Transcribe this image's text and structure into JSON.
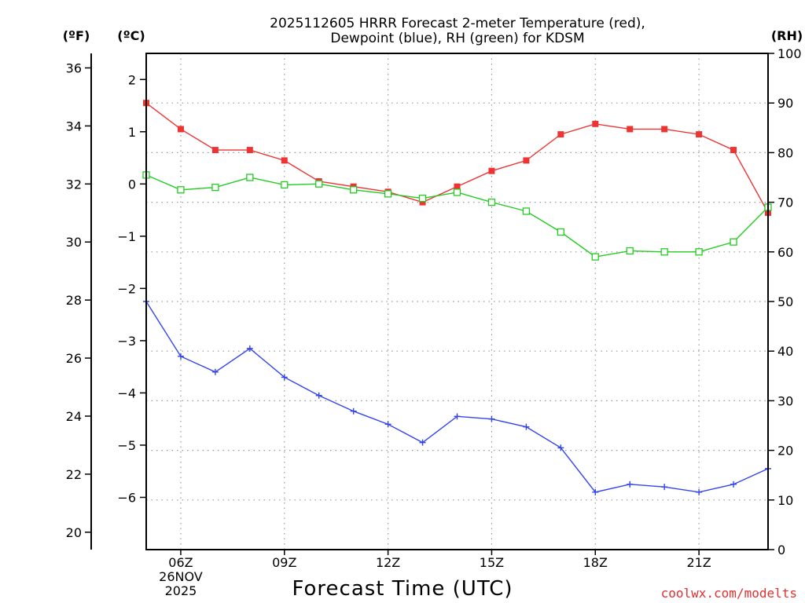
{
  "chart_data": {
    "type": "line",
    "title_line1": "2025112605 HRRR Forecast 2-meter Temperature (red),",
    "title_line2": "Dewpoint (blue), RH (green) for KDSM",
    "xlabel": "Forecast Time (UTC)",
    "credit": "coolwx.com/modelts",
    "units": {
      "fahrenheit": "(ºF)",
      "celsius": "(ºC)",
      "rh": "(RH)"
    },
    "x": [
      5,
      6,
      7,
      8,
      9,
      10,
      11,
      12,
      13,
      14,
      15,
      16,
      17,
      18,
      19,
      20,
      21,
      22,
      23
    ],
    "xlim": [
      5,
      23
    ],
    "x_ticks": [
      {
        "x": 6,
        "lines": [
          "06Z",
          "26NOV",
          "2025"
        ]
      },
      {
        "x": 9,
        "lines": [
          "09Z"
        ]
      },
      {
        "x": 12,
        "lines": [
          "12Z"
        ]
      },
      {
        "x": 15,
        "lines": [
          "15Z"
        ]
      },
      {
        "x": 18,
        "lines": [
          "18Z"
        ]
      },
      {
        "x": 21,
        "lines": [
          "21Z"
        ]
      }
    ],
    "celsius_axis": {
      "ylim": [
        -7,
        2.5
      ],
      "ticks": [
        2,
        1,
        0,
        -1,
        -2,
        -3,
        -4,
        -5,
        -6
      ],
      "tick_labels": [
        "2",
        "1",
        "0",
        "−1",
        "−2",
        "−3",
        "−4",
        "−5",
        "−6"
      ]
    },
    "fahrenheit_axis": {
      "ticks": [
        36,
        34,
        32,
        30,
        28,
        26,
        24,
        22,
        20
      ],
      "tick_labels": [
        "36",
        "34",
        "32",
        "30",
        "28",
        "26",
        "24",
        "22",
        "20"
      ]
    },
    "rh_axis": {
      "ylim": [
        0,
        100
      ],
      "ticks": [
        100,
        90,
        80,
        70,
        60,
        50,
        40,
        30,
        20,
        10,
        0
      ],
      "tick_labels": [
        "100",
        "90",
        "80",
        "70",
        "60",
        "50",
        "40",
        "30",
        "20",
        "10",
        "0"
      ]
    },
    "series": [
      {
        "name": "Temperature",
        "axis": "celsius",
        "color": "#ee3333",
        "marker": "filled-square",
        "values": [
          1.55,
          1.05,
          0.65,
          0.65,
          0.45,
          0.05,
          -0.05,
          -0.15,
          -0.35,
          -0.05,
          0.25,
          0.45,
          0.95,
          1.15,
          1.05,
          1.05,
          0.95,
          0.65,
          -0.55
        ]
      },
      {
        "name": "Dewpoint",
        "axis": "celsius",
        "color": "#3344ee",
        "marker": "plus",
        "values": [
          -2.25,
          -3.3,
          -3.6,
          -3.15,
          -3.7,
          -4.05,
          -4.35,
          -4.6,
          -4.95,
          -4.45,
          -4.5,
          -4.65,
          -5.05,
          -5.9,
          -5.75,
          -5.8,
          -5.9,
          -5.75,
          -5.45
        ]
      },
      {
        "name": "RH",
        "axis": "rh",
        "color": "#22cc22",
        "marker": "open-square",
        "values": [
          75.5,
          72.5,
          73,
          75,
          73.5,
          73.7,
          72.5,
          71.7,
          70.8,
          72,
          70,
          68.2,
          64,
          59,
          60.2,
          60,
          60,
          62,
          69
        ]
      }
    ]
  }
}
